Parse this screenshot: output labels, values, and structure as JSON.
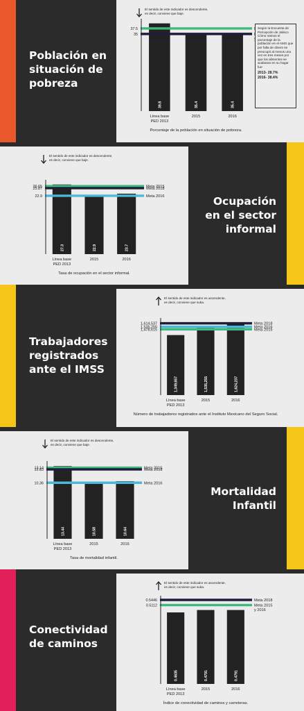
{
  "sections": [
    {
      "title": "Población en\nsituación de\npobreza",
      "accent": "#e8582a",
      "direction": "down",
      "direction_text": [
        "El sentido de este indicador es descendente,",
        "es decir, conviene que baje."
      ],
      "caption": "Porcentaje de la población en situación de pobreza.",
      "note": {
        "text": "Según la Encuesta de Percepción de Jalisco Cómo Vamos el porcentaje de la población en el AMG que por falta de dinero se preocupó al menos una vez en tres meses por que los alimentos se acabaran en su hogar fue:",
        "values": [
          "2013- 28.7%",
          "2016- 38.4%"
        ]
      }
    },
    {
      "title": "Ocupación\nen el sector\ninformal",
      "accent": "#f5c518",
      "direction": "down",
      "direction_text": [
        "El sentido de este indicador es descendente,",
        "es decir, conviene que baje."
      ],
      "caption": "Tasa de ocupación en el sector informal."
    },
    {
      "title": "Trabajadores\nregistrados\nante el IMSS",
      "accent": "#f5c518",
      "direction": "up",
      "direction_text": [
        "El sentido de este indicador es ascendente,",
        "es decir, conviene que suba."
      ],
      "caption": "Número de trabajadores registrados ante el Instituto Mexicano del Seguro Social."
    },
    {
      "title": "Mortalidad\nInfantil",
      "accent": "#f5c518",
      "direction": "down",
      "direction_text": [
        "El sentido de este indicador es descendente,",
        "es decir, conviene que baje."
      ],
      "caption": "Tasa de mortalidad infantil."
    },
    {
      "title": "Conectividad\nde caminos",
      "accent": "#e21f5a",
      "direction": "up",
      "direction_text": [
        "El sentido de este indicador es ascendente,",
        "es decir, conviene que suba."
      ],
      "caption": "Índice de conectividad de caminos y carreteras."
    }
  ],
  "colors": {
    "bar": "#222222",
    "meta_green": "#3dba7c",
    "meta_blue": "#1e1e3c",
    "meta_cyan": "#4ab8d8",
    "panel": "#ececec",
    "dark": "#2b2b2b"
  },
  "chart_data": [
    {
      "type": "bar",
      "categories": [
        "Línea base\nPED 2013",
        "2015",
        "2016"
      ],
      "values": [
        39.8,
        35.4,
        35.4
      ],
      "value_labels": [
        "39.8",
        "35.4",
        "35.4"
      ],
      "ylim": [
        0,
        40
      ],
      "xlabel": "Porcentaje de la población en situación de pobreza.",
      "reference_lines": [
        {
          "value": 37.5,
          "tick_label": "37.5",
          "label": "Meta 2015",
          "color": "#3dba7c"
        },
        {
          "value": 35,
          "tick_label": "35",
          "label": "Meta 2016\ny 2018",
          "color": "#1e1e3c"
        }
      ]
    },
    {
      "type": "bar",
      "categories": [
        "Línea base\nPED 2013",
        "2015",
        "2016"
      ],
      "values": [
        27.3,
        22.9,
        23.7
      ],
      "value_labels": [
        "27.3",
        "22.9",
        "23.7"
      ],
      "ylim": [
        0,
        27.5
      ],
      "xlabel": "Tasa de ocupación en el sector informal.",
      "reference_lines": [
        {
          "value": 26.65,
          "tick_label": "26.65",
          "label": "Meta 2015",
          "color": "#3dba7c"
        },
        {
          "value": 25.87,
          "tick_label": "25.87",
          "label": "Meta 2018",
          "color": "#1e1e3c"
        },
        {
          "value": 22.9,
          "tick_label": "22.9",
          "label": "Meta 2016",
          "color": "#4ab8d8"
        }
      ]
    },
    {
      "type": "bar",
      "categories": [
        "Línea base\nPED 2013",
        "2015",
        "2016"
      ],
      "values": [
        1349657,
        1535255,
        1624237
      ],
      "value_labels": [
        "1,349,657",
        "1,535,255",
        "1,624,237"
      ],
      "ylim": [
        0,
        1640000
      ],
      "xlabel": "Número de trabajadores registrados ante el Instituto Mexicano del Seguro Social.",
      "reference_lines": [
        {
          "value": 1614537,
          "tick_label": "1,614,537",
          "label": "Meta 2018",
          "color": "#1e1e3c"
        },
        {
          "value": 1535255,
          "tick_label": "1,535,255",
          "label": "Meta 2016",
          "color": "#4ab8d8"
        },
        {
          "value": 1478615,
          "tick_label": "1,478,615",
          "label": "Meta 2015",
          "color": "#3dba7c"
        }
      ]
    },
    {
      "type": "bar",
      "categories": [
        "Línea base\nPED 2013",
        "2015",
        "2016"
      ],
      "values": [
        13.44,
        10.58,
        10.64
      ],
      "value_labels": [
        "13.44",
        "10.58",
        "10.64"
      ],
      "ylim": [
        0,
        13.6
      ],
      "xlabel": "Tasa de mortalidad infantil.",
      "reference_lines": [
        {
          "value": 13.14,
          "tick_label": "13.14",
          "label": "Meta 2015",
          "color": "#3dba7c"
        },
        {
          "value": 12.83,
          "tick_label": "12.83",
          "label": "Meta 2018",
          "color": "#1e1e3c"
        },
        {
          "value": 10.36,
          "tick_label": "10.36",
          "label": "Meta 2016",
          "color": "#4ab8d8"
        }
      ]
    },
    {
      "type": "bar",
      "categories": [
        "Línea base\nPED 2013",
        "2015",
        "2016"
      ],
      "values": [
        0.4635,
        0.4791,
        0.4791
      ],
      "value_labels": [
        "0.4635",
        "0.4791",
        "0.4791"
      ],
      "ylim": [
        0,
        0.5446
      ],
      "xlabel": "Índice de conectividad de caminos y carreteras.",
      "reference_lines": [
        {
          "value": 0.5446,
          "tick_label": "0.5446",
          "label": "Meta 2018",
          "color": "#1e1e3c"
        },
        {
          "value": 0.5112,
          "tick_label": "0.5112",
          "label": "Meta 2015\ny 2016",
          "color": "#3dba7c"
        }
      ]
    }
  ]
}
